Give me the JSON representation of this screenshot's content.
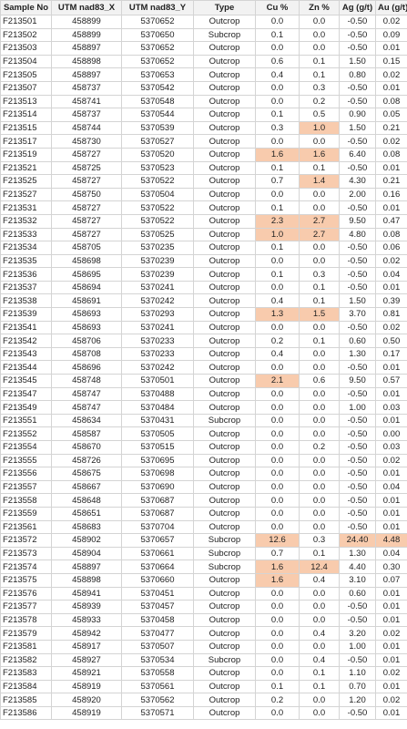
{
  "table": {
    "header": [
      "Sample No",
      "UTM nad83_X",
      "UTM nad83_Y",
      "Type",
      "Cu %",
      "Zn %",
      "Ag (g/t)",
      "Au (g/t)"
    ],
    "rows": [
      [
        "F213501",
        "458899",
        "5370652",
        "Outcrop",
        "0.0",
        "0.0",
        "-0.50",
        "0.02"
      ],
      [
        "F213502",
        "458899",
        "5370650",
        "Subcrop",
        "0.1",
        "0.0",
        "-0.50",
        "0.09"
      ],
      [
        "F213503",
        "458897",
        "5370652",
        "Outcrop",
        "0.0",
        "0.0",
        "-0.50",
        "0.01"
      ],
      [
        "F213504",
        "458898",
        "5370652",
        "Outcrop",
        "0.6",
        "0.1",
        "1.50",
        "0.15"
      ],
      [
        "F213505",
        "458897",
        "5370653",
        "Outcrop",
        "0.4",
        "0.1",
        "0.80",
        "0.02"
      ],
      [
        "F213507",
        "458737",
        "5370542",
        "Outcrop",
        "0.0",
        "0.3",
        "-0.50",
        "0.01"
      ],
      [
        "F213513",
        "458741",
        "5370548",
        "Outcrop",
        "0.0",
        "0.2",
        "-0.50",
        "0.08"
      ],
      [
        "F213514",
        "458737",
        "5370544",
        "Outcrop",
        "0.1",
        "0.5",
        "0.90",
        "0.05"
      ],
      [
        "F213515",
        "458744",
        "5370539",
        "Outcrop",
        "0.3",
        "1.0",
        "1.50",
        "0.21"
      ],
      [
        "F213517",
        "458730",
        "5370527",
        "Outcrop",
        "0.0",
        "0.0",
        "-0.50",
        "0.02"
      ],
      [
        "F213519",
        "458727",
        "5370520",
        "Outcrop",
        "1.6",
        "1.6",
        "6.40",
        "0.08"
      ],
      [
        "F213521",
        "458725",
        "5370523",
        "Outcrop",
        "0.1",
        "0.1",
        "-0.50",
        "0.01"
      ],
      [
        "F213525",
        "458727",
        "5370522",
        "Outcrop",
        "0.7",
        "1.4",
        "4.30",
        "0.21"
      ],
      [
        "F213527",
        "458750",
        "5370504",
        "Outcrop",
        "0.0",
        "0.0",
        "2.00",
        "0.16"
      ],
      [
        "F213531",
        "458727",
        "5370522",
        "Outcrop",
        "0.1",
        "0.0",
        "-0.50",
        "0.01"
      ],
      [
        "F213532",
        "458727",
        "5370522",
        "Outcrop",
        "2.3",
        "2.7",
        "9.50",
        "0.47"
      ],
      [
        "F213533",
        "458727",
        "5370525",
        "Outcrop",
        "1.0",
        "2.7",
        "4.80",
        "0.08"
      ],
      [
        "F213534",
        "458705",
        "5370235",
        "Outcrop",
        "0.1",
        "0.0",
        "-0.50",
        "0.06"
      ],
      [
        "F213535",
        "458698",
        "5370239",
        "Outcrop",
        "0.0",
        "0.0",
        "-0.50",
        "0.02"
      ],
      [
        "F213536",
        "458695",
        "5370239",
        "Outcrop",
        "0.1",
        "0.3",
        "-0.50",
        "0.04"
      ],
      [
        "F213537",
        "458694",
        "5370241",
        "Outcrop",
        "0.0",
        "0.1",
        "-0.50",
        "0.01"
      ],
      [
        "F213538",
        "458691",
        "5370242",
        "Outcrop",
        "0.4",
        "0.1",
        "1.50",
        "0.39"
      ],
      [
        "F213539",
        "458693",
        "5370293",
        "Outcrop",
        "1.3",
        "1.5",
        "3.70",
        "0.81"
      ],
      [
        "F213541",
        "458693",
        "5370241",
        "Outcrop",
        "0.0",
        "0.0",
        "-0.50",
        "0.02"
      ],
      [
        "F213542",
        "458706",
        "5370233",
        "Outcrop",
        "0.2",
        "0.1",
        "0.60",
        "0.50"
      ],
      [
        "F213543",
        "458708",
        "5370233",
        "Outcrop",
        "0.4",
        "0.0",
        "1.30",
        "0.17"
      ],
      [
        "F213544",
        "458696",
        "5370242",
        "Outcrop",
        "0.0",
        "0.0",
        "-0.50",
        "0.01"
      ],
      [
        "F213545",
        "458748",
        "5370501",
        "Outcrop",
        "2.1",
        "0.6",
        "9.50",
        "0.57"
      ],
      [
        "F213547",
        "458747",
        "5370488",
        "Outcrop",
        "0.0",
        "0.0",
        "-0.50",
        "0.01"
      ],
      [
        "F213549",
        "458747",
        "5370484",
        "Outcrop",
        "0.0",
        "0.0",
        "1.00",
        "0.03"
      ],
      [
        "F213551",
        "458634",
        "5370431",
        "Subcrop",
        "0.0",
        "0.0",
        "-0.50",
        "0.01"
      ],
      [
        "F213552",
        "458587",
        "5370505",
        "Outcrop",
        "0.0",
        "0.0",
        "-0.50",
        "0.00"
      ],
      [
        "F213554",
        "458670",
        "5370515",
        "Outcrop",
        "0.0",
        "0.2",
        "-0.50",
        "0.03"
      ],
      [
        "F213555",
        "458726",
        "5370695",
        "Outcrop",
        "0.0",
        "0.0",
        "-0.50",
        "0.02"
      ],
      [
        "F213556",
        "458675",
        "5370698",
        "Outcrop",
        "0.0",
        "0.0",
        "-0.50",
        "0.01"
      ],
      [
        "F213557",
        "458667",
        "5370690",
        "Outcrop",
        "0.0",
        "0.0",
        "-0.50",
        "0.04"
      ],
      [
        "F213558",
        "458648",
        "5370687",
        "Outcrop",
        "0.0",
        "0.0",
        "-0.50",
        "0.01"
      ],
      [
        "F213559",
        "458651",
        "5370687",
        "Outcrop",
        "0.0",
        "0.0",
        "-0.50",
        "0.01"
      ],
      [
        "F213561",
        "458683",
        "5370704",
        "Outcrop",
        "0.0",
        "0.0",
        "-0.50",
        "0.01"
      ],
      [
        "F213572",
        "458902",
        "5370657",
        "Subcrop",
        "12.6",
        "0.3",
        "24.40",
        "4.48"
      ],
      [
        "F213573",
        "458904",
        "5370661",
        "Subcrop",
        "0.7",
        "0.1",
        "1.30",
        "0.04"
      ],
      [
        "F213574",
        "458897",
        "5370664",
        "Subcrop",
        "1.6",
        "12.4",
        "4.40",
        "0.30"
      ],
      [
        "F213575",
        "458898",
        "5370660",
        "Outcrop",
        "1.6",
        "0.4",
        "3.10",
        "0.07"
      ],
      [
        "F213576",
        "458941",
        "5370451",
        "Outcrop",
        "0.0",
        "0.0",
        "0.60",
        "0.01"
      ],
      [
        "F213577",
        "458939",
        "5370457",
        "Outcrop",
        "0.0",
        "0.0",
        "-0.50",
        "0.01"
      ],
      [
        "F213578",
        "458933",
        "5370458",
        "Outcrop",
        "0.0",
        "0.0",
        "-0.50",
        "0.01"
      ],
      [
        "F213579",
        "458942",
        "5370477",
        "Outcrop",
        "0.0",
        "0.4",
        "3.20",
        "0.02"
      ],
      [
        "F213581",
        "458917",
        "5370507",
        "Outcrop",
        "0.0",
        "0.0",
        "1.00",
        "0.01"
      ],
      [
        "F213582",
        "458927",
        "5370534",
        "Subcrop",
        "0.0",
        "0.4",
        "-0.50",
        "0.01"
      ],
      [
        "F213583",
        "458921",
        "5370558",
        "Outcrop",
        "0.0",
        "0.1",
        "1.10",
        "0.02"
      ],
      [
        "F213584",
        "458919",
        "5370561",
        "Outcrop",
        "0.1",
        "0.1",
        "0.70",
        "0.01"
      ],
      [
        "F213585",
        "458920",
        "5370562",
        "Outcrop",
        "0.2",
        "0.0",
        "1.20",
        "0.02"
      ],
      [
        "F213586",
        "458919",
        "5370571",
        "Outcrop",
        "0.0",
        "0.0",
        "-0.50",
        "0.01"
      ]
    ],
    "highlight_color": "#f8cbad",
    "highlighted_cells": [
      [
        8,
        5
      ],
      [
        10,
        4
      ],
      [
        10,
        5
      ],
      [
        12,
        5
      ],
      [
        15,
        4
      ],
      [
        15,
        5
      ],
      [
        16,
        4
      ],
      [
        16,
        5
      ],
      [
        22,
        4
      ],
      [
        22,
        5
      ],
      [
        27,
        4
      ],
      [
        39,
        4
      ],
      [
        39,
        6
      ],
      [
        39,
        7
      ],
      [
        41,
        4
      ],
      [
        41,
        5
      ],
      [
        42,
        4
      ]
    ]
  }
}
